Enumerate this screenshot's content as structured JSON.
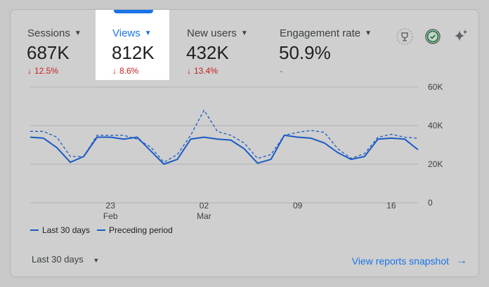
{
  "metrics": [
    {
      "label": "Sessions",
      "value": "687K",
      "change": "12.5%",
      "direction": "down"
    },
    {
      "label": "Views",
      "value": "812K",
      "change": "8.6%",
      "direction": "down"
    },
    {
      "label": "New users",
      "value": "432K",
      "change": "13.4%",
      "direction": "down"
    },
    {
      "label": "Engagement rate",
      "value": "50.9%",
      "change": "-",
      "direction": "none"
    }
  ],
  "icons": {
    "insights": "trophy-badge-icon",
    "status": "check-circle-icon",
    "sparkle": "sparkle-icon"
  },
  "chart_data": {
    "type": "line",
    "y_ticks": [
      "60K",
      "40K",
      "20K",
      "0"
    ],
    "ylim": [
      0,
      60000
    ],
    "x_ticks": [
      {
        "day": "23",
        "month": "Feb"
      },
      {
        "day": "02",
        "month": "Mar"
      },
      {
        "day": "09",
        "month": ""
      },
      {
        "day": "16",
        "month": ""
      }
    ],
    "series": [
      {
        "name": "Last 30 days",
        "style": "solid",
        "values": [
          34000,
          33500,
          28500,
          21000,
          24000,
          34000,
          34000,
          33000,
          34000,
          27000,
          20000,
          22500,
          33000,
          34000,
          33000,
          32500,
          28000,
          20500,
          22500,
          35000,
          34000,
          33500,
          31000,
          26000,
          22500,
          24000,
          33000,
          33500,
          33000,
          27500
        ]
      },
      {
        "name": "Preceding period",
        "style": "dashed",
        "values": [
          37000,
          37000,
          34000,
          24000,
          24000,
          35000,
          35000,
          35000,
          33000,
          29000,
          21000,
          25000,
          35000,
          48000,
          37000,
          35000,
          31000,
          23000,
          25000,
          35000,
          36500,
          37500,
          36500,
          28000,
          23000,
          25500,
          34000,
          35500,
          34000,
          33500
        ]
      }
    ],
    "legend": "bottom-left",
    "colors": {
      "line": "#1a5bc4",
      "grid": "#b0b0b0"
    }
  },
  "footer": {
    "range_label": "Last 30 days",
    "snapshot_link": "View reports snapshot"
  }
}
